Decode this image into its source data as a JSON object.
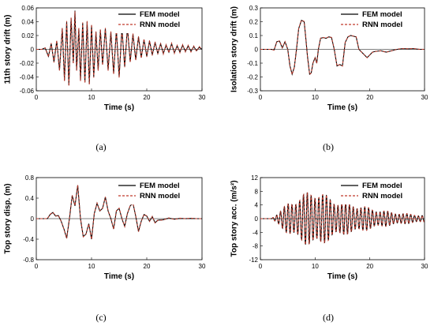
{
  "chart_data": [
    {
      "type": "line",
      "caption": "(a)",
      "xlabel": "Time (s)",
      "ylabel": "11th story drift (m)",
      "xlim": [
        0,
        30
      ],
      "ylim": [
        -0.06,
        0.06
      ],
      "xticks": [
        0,
        10,
        20,
        30
      ],
      "yticks": [
        -0.06,
        -0.04,
        -0.02,
        0,
        0.02,
        0.04,
        0.06
      ],
      "ytick_labels": [
        "-0.06",
        "-0.04",
        "-0.02",
        "0",
        "0.02",
        "0.04",
        "0.06"
      ],
      "legend_position": "top-right",
      "grid": false,
      "series": [
        {
          "name": "FEM model",
          "color": "#000000",
          "style": "solid",
          "x": [
            0,
            1,
            1.6,
            2.2,
            2.7,
            3.2,
            3.7,
            4.2,
            4.7,
            5.1,
            5.5,
            5.9,
            6.3,
            6.7,
            7.0,
            7.3,
            7.7,
            8.0,
            8.4,
            8.8,
            9.2,
            9.6,
            10.0,
            10.4,
            10.8,
            11.2,
            11.6,
            12.0,
            12.5,
            13.0,
            13.5,
            14.0,
            14.5,
            15.0,
            15.5,
            16.0,
            16.5,
            17.0,
            17.5,
            18.0,
            18.5,
            19.0,
            19.5,
            20.0,
            20.5,
            21.0,
            21.5,
            22.0,
            22.5,
            23.0,
            23.5,
            24.0,
            24.5,
            25.0,
            25.5,
            26.0,
            26.5,
            27.0,
            27.5,
            28.0,
            28.5,
            29.0,
            29.5,
            30.0
          ],
          "y": [
            0,
            0,
            0.002,
            -0.01,
            0.008,
            -0.018,
            0.012,
            -0.03,
            0.03,
            -0.045,
            0.04,
            -0.052,
            0.045,
            -0.02,
            0.056,
            -0.03,
            0.03,
            -0.045,
            0.038,
            -0.048,
            0.04,
            -0.05,
            0.035,
            -0.04,
            0.025,
            -0.03,
            0.028,
            -0.022,
            0.03,
            -0.03,
            0.025,
            -0.035,
            0.028,
            -0.04,
            0.03,
            -0.025,
            0.032,
            -0.018,
            0.022,
            -0.015,
            0.018,
            -0.012,
            0.014,
            -0.01,
            0.012,
            -0.008,
            0.01,
            -0.006,
            0.008,
            -0.006,
            0.006,
            -0.004,
            0.008,
            -0.005,
            0.005,
            -0.004,
            0.006,
            -0.003,
            0.005,
            -0.003,
            0.004,
            -0.002,
            0.003,
            0.0
          ]
        },
        {
          "name": "RNN model",
          "color": "#c0392b",
          "style": "dashed",
          "x": [
            0,
            1,
            1.6,
            2.2,
            2.7,
            3.2,
            3.7,
            4.2,
            4.7,
            5.1,
            5.5,
            5.9,
            6.3,
            6.7,
            7.0,
            7.3,
            7.7,
            8.0,
            8.4,
            8.8,
            9.2,
            9.6,
            10.0,
            10.4,
            10.8,
            11.2,
            11.6,
            12.0,
            12.5,
            13.0,
            13.5,
            14.0,
            14.5,
            15.0,
            15.5,
            16.0,
            16.5,
            17.0,
            17.5,
            18.0,
            18.5,
            19.0,
            19.5,
            20.0,
            20.5,
            21.0,
            21.5,
            22.0,
            22.5,
            23.0,
            23.5,
            24.0,
            24.5,
            25.0,
            25.5,
            26.0,
            26.5,
            27.0,
            27.5,
            28.0,
            28.5,
            29.0,
            29.5,
            30.0
          ],
          "y": [
            0,
            0,
            0.002,
            -0.011,
            0.009,
            -0.019,
            0.013,
            -0.031,
            0.031,
            -0.046,
            0.041,
            -0.053,
            0.046,
            -0.021,
            0.055,
            -0.031,
            0.031,
            -0.046,
            0.039,
            -0.049,
            0.041,
            -0.051,
            0.036,
            -0.041,
            0.026,
            -0.031,
            0.029,
            -0.023,
            0.031,
            -0.031,
            0.026,
            -0.036,
            0.029,
            -0.041,
            0.031,
            -0.026,
            0.033,
            -0.019,
            0.023,
            -0.016,
            0.019,
            -0.013,
            0.015,
            -0.011,
            0.013,
            -0.009,
            0.011,
            -0.007,
            0.009,
            -0.007,
            0.007,
            -0.005,
            0.009,
            -0.006,
            0.006,
            -0.005,
            0.007,
            -0.004,
            0.006,
            -0.004,
            0.005,
            -0.003,
            0.004,
            0.0
          ]
        }
      ]
    },
    {
      "type": "line",
      "caption": "(b)",
      "xlabel": "Time (s)",
      "ylabel": "Isolation story drift (m)",
      "xlim": [
        0,
        30
      ],
      "ylim": [
        -0.3,
        0.3
      ],
      "xticks": [
        0,
        10,
        20,
        30
      ],
      "yticks": [
        -0.3,
        -0.2,
        -0.1,
        0,
        0.1,
        0.2,
        0.3
      ],
      "ytick_labels": [
        "-0.3",
        "-0.2",
        "-0.1",
        "0",
        "0.1",
        "0.2",
        "0.3"
      ],
      "legend_position": "top-right",
      "grid": false,
      "series": [
        {
          "name": "FEM model",
          "color": "#000000",
          "style": "solid",
          "x": [
            0,
            2,
            2.5,
            3.0,
            3.5,
            4.0,
            4.5,
            5.0,
            5.4,
            5.8,
            6.2,
            6.6,
            7.0,
            7.5,
            8.0,
            8.3,
            8.6,
            9.0,
            9.3,
            9.6,
            10.0,
            10.3,
            10.6,
            11.0,
            11.5,
            12.0,
            12.5,
            13.0,
            13.5,
            14.0,
            14.5,
            15.0,
            15.5,
            16.0,
            16.5,
            17.0,
            17.5,
            18.0,
            18.5,
            19.0,
            19.5,
            20.0,
            20.5,
            21.0,
            22.0,
            23.0,
            24.0,
            25.0,
            26.0,
            27.0,
            28.0,
            29.0,
            30.0
          ],
          "y": [
            0,
            0,
            -0.005,
            0.055,
            0.06,
            0.01,
            0.055,
            0.0,
            -0.12,
            -0.18,
            -0.13,
            0.0,
            0.15,
            0.21,
            0.2,
            0.08,
            -0.05,
            -0.18,
            -0.17,
            -0.1,
            -0.06,
            -0.1,
            0.0,
            0.08,
            0.085,
            0.08,
            0.09,
            0.085,
            0.0,
            -0.12,
            -0.11,
            -0.12,
            0.05,
            0.09,
            0.1,
            0.095,
            0.09,
            0.0,
            -0.02,
            -0.04,
            -0.06,
            -0.04,
            -0.02,
            -0.015,
            -0.01,
            -0.02,
            -0.01,
            0.0,
            0.005,
            0.003,
            0.005,
            0.0,
            0.0
          ]
        },
        {
          "name": "RNN model",
          "color": "#c0392b",
          "style": "dashed",
          "x": [
            0,
            2,
            2.5,
            3.0,
            3.5,
            4.0,
            4.5,
            5.0,
            5.4,
            5.8,
            6.2,
            6.6,
            7.0,
            7.5,
            8.0,
            8.3,
            8.6,
            9.0,
            9.3,
            9.6,
            10.0,
            10.3,
            10.6,
            11.0,
            11.5,
            12.0,
            12.5,
            13.0,
            13.5,
            14.0,
            14.5,
            15.0,
            15.5,
            16.0,
            16.5,
            17.0,
            17.5,
            18.0,
            18.5,
            19.0,
            19.5,
            20.0,
            20.5,
            21.0,
            22.0,
            23.0,
            24.0,
            25.0,
            26.0,
            27.0,
            28.0,
            29.0,
            30.0
          ],
          "y": [
            0,
            0,
            -0.006,
            0.056,
            0.061,
            0.011,
            0.056,
            0.001,
            -0.121,
            -0.182,
            -0.131,
            0.001,
            0.152,
            0.212,
            0.202,
            0.082,
            -0.051,
            -0.182,
            -0.171,
            -0.101,
            -0.061,
            -0.101,
            0.001,
            0.081,
            0.086,
            0.081,
            0.091,
            0.086,
            0.001,
            -0.121,
            -0.111,
            -0.121,
            0.051,
            0.091,
            0.101,
            0.096,
            0.091,
            0.001,
            -0.021,
            -0.041,
            -0.061,
            -0.041,
            -0.021,
            -0.016,
            -0.011,
            -0.021,
            -0.011,
            0.001,
            0.006,
            0.004,
            0.006,
            0.001,
            0.0
          ]
        }
      ]
    },
    {
      "type": "line",
      "caption": "(c)",
      "xlabel": "Time (s)",
      "ylabel": "Top story disp. (m)",
      "xlim": [
        0,
        30
      ],
      "ylim": [
        -0.8,
        0.8
      ],
      "xticks": [
        0,
        10,
        20,
        30
      ],
      "yticks": [
        -0.8,
        -0.4,
        0,
        0.4,
        0.8
      ],
      "ytick_labels": [
        "-0.8",
        "-0.4",
        "0",
        "0.4",
        "0.8"
      ],
      "legend_position": "top-right",
      "grid": false,
      "series": [
        {
          "name": "FEM model",
          "color": "#000000",
          "style": "solid",
          "x": [
            0,
            2,
            2.5,
            3.0,
            3.5,
            4.0,
            4.5,
            5.0,
            5.5,
            6.0,
            6.5,
            7.0,
            7.5,
            8.0,
            8.5,
            9.0,
            9.5,
            10.0,
            10.5,
            11.0,
            11.5,
            12.0,
            12.5,
            13.0,
            13.5,
            14.0,
            14.5,
            15.0,
            15.5,
            16.0,
            16.5,
            17.0,
            17.5,
            18.0,
            18.5,
            19.0,
            19.5,
            20.0,
            20.5,
            21.0,
            21.5,
            22.0,
            23.0,
            24.0,
            25.0,
            26.0,
            27.0,
            28.0,
            29.0,
            30.0
          ],
          "y": [
            0,
            0,
            0.08,
            0.12,
            0.05,
            0.06,
            -0.05,
            -0.2,
            -0.38,
            0.0,
            0.45,
            0.25,
            0.65,
            0.0,
            -0.35,
            -0.3,
            -0.1,
            -0.4,
            0.1,
            0.3,
            0.15,
            0.2,
            0.42,
            0.15,
            0.0,
            -0.2,
            0.15,
            0.2,
            0.0,
            -0.15,
            0.1,
            0.25,
            0.3,
            0.05,
            -0.25,
            -0.05,
            0.08,
            0.05,
            -0.05,
            0.04,
            -0.08,
            -0.03,
            -0.02,
            0.01,
            -0.01,
            0.005,
            0.0,
            0.005,
            0.0,
            0.0
          ]
        },
        {
          "name": "RNN model",
          "color": "#c0392b",
          "style": "dashed",
          "x": [
            0,
            2,
            2.5,
            3.0,
            3.5,
            4.0,
            4.5,
            5.0,
            5.5,
            6.0,
            6.5,
            7.0,
            7.5,
            8.0,
            8.5,
            9.0,
            9.5,
            10.0,
            10.5,
            11.0,
            11.5,
            12.0,
            12.5,
            13.0,
            13.5,
            14.0,
            14.5,
            15.0,
            15.5,
            16.0,
            16.5,
            17.0,
            17.5,
            18.0,
            18.5,
            19.0,
            19.5,
            20.0,
            20.5,
            21.0,
            21.5,
            22.0,
            23.0,
            24.0,
            25.0,
            26.0,
            27.0,
            28.0,
            29.0,
            30.0
          ],
          "y": [
            0,
            0,
            0.085,
            0.125,
            0.055,
            0.065,
            -0.055,
            -0.205,
            -0.385,
            0.005,
            0.455,
            0.255,
            0.655,
            0.005,
            -0.355,
            -0.305,
            -0.105,
            -0.405,
            0.105,
            0.305,
            0.155,
            0.205,
            0.425,
            0.155,
            0.005,
            -0.205,
            0.155,
            0.205,
            0.005,
            -0.155,
            0.105,
            0.255,
            0.305,
            0.055,
            -0.255,
            -0.055,
            0.085,
            0.055,
            -0.055,
            0.045,
            -0.085,
            -0.035,
            -0.025,
            0.015,
            -0.015,
            0.01,
            0.0,
            0.01,
            0.0,
            0.0
          ]
        }
      ]
    },
    {
      "type": "line",
      "caption": "(d)",
      "xlabel": "Time (s)",
      "ylabel": "Top story acc. (m/s²)",
      "xlim": [
        0,
        30
      ],
      "ylim": [
        -12,
        12
      ],
      "xticks": [
        0,
        10,
        20,
        30
      ],
      "yticks": [
        -12,
        -8,
        -4,
        0,
        4,
        8,
        12
      ],
      "ytick_labels": [
        "-12",
        "-8",
        "-4",
        "0",
        "4",
        "8",
        "12"
      ],
      "legend_position": "top-right",
      "grid": false,
      "envelope": {
        "t": [
          0,
          2,
          3,
          4,
          5,
          6,
          7,
          8,
          9,
          10,
          11,
          12,
          13,
          14,
          15,
          16,
          17,
          18,
          20,
          22,
          24,
          26,
          28,
          30
        ],
        "amp": [
          0,
          0,
          1.5,
          3,
          4.5,
          5.5,
          6.5,
          7.5,
          8,
          8.5,
          8,
          7,
          6,
          5.5,
          5,
          4.5,
          4.5,
          4,
          3.2,
          2.5,
          2,
          1.6,
          1.3,
          1.0
        ]
      },
      "oscillation_period_s": 0.7,
      "series": [
        {
          "name": "FEM model",
          "color": "#000000",
          "style": "solid"
        },
        {
          "name": "RNN model",
          "color": "#c0392b",
          "style": "dashed"
        }
      ]
    }
  ]
}
